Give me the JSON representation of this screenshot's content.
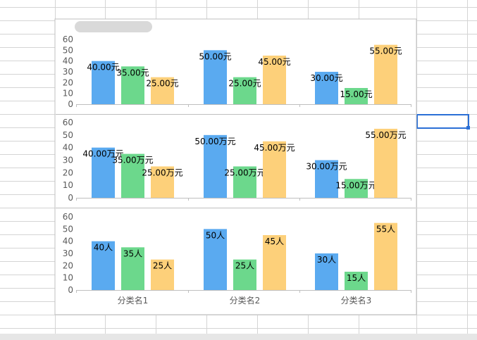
{
  "chart_data": [
    {
      "type": "bar",
      "categories": [
        "分类名1",
        "分类名2",
        "分类名3"
      ],
      "series": [
        {
          "values": [
            40,
            50,
            30
          ],
          "color": "#5aaaf0"
        },
        {
          "values": [
            35,
            25,
            15
          ],
          "color": "#6cd88c"
        },
        {
          "values": [
            25,
            45,
            55
          ],
          "color": "#fdd07a"
        }
      ],
      "data_labels": [
        [
          "40.00元",
          "50.00元",
          "30.00元"
        ],
        [
          "35.00元",
          "25.00元",
          "15.00元"
        ],
        [
          "25.00元",
          "45.00元",
          "55.00元"
        ]
      ],
      "yticks": [
        "0",
        "10",
        "20",
        "30",
        "40",
        "50",
        "60"
      ],
      "ylim": [
        0,
        60
      ],
      "show_category_labels": false
    },
    {
      "type": "bar",
      "categories": [
        "分类名1",
        "分类名2",
        "分类名3"
      ],
      "series": [
        {
          "values": [
            40,
            50,
            30
          ],
          "color": "#5aaaf0"
        },
        {
          "values": [
            35,
            25,
            15
          ],
          "color": "#6cd88c"
        },
        {
          "values": [
            25,
            45,
            55
          ],
          "color": "#fdd07a"
        }
      ],
      "data_labels": [
        [
          "40.00万元",
          "50.00万元",
          "30.00万元"
        ],
        [
          "35.00万元",
          "25.00万元",
          "15.00万元"
        ],
        [
          "25.00万元",
          "45.00万元",
          "55.00万元"
        ]
      ],
      "yticks": [
        "0",
        "10",
        "20",
        "30",
        "40",
        "50",
        "60"
      ],
      "ylim": [
        0,
        60
      ],
      "show_category_labels": false
    },
    {
      "type": "bar",
      "categories": [
        "分类名1",
        "分类名2",
        "分类名3"
      ],
      "series": [
        {
          "values": [
            40,
            50,
            30
          ],
          "color": "#5aaaf0"
        },
        {
          "values": [
            35,
            25,
            15
          ],
          "color": "#6cd88c"
        },
        {
          "values": [
            25,
            45,
            55
          ],
          "color": "#fdd07a"
        }
      ],
      "data_labels": [
        [
          "40人",
          "50人",
          "30人"
        ],
        [
          "35人",
          "25人",
          "15人"
        ],
        [
          "25人",
          "45人",
          "55人"
        ]
      ],
      "yticks": [
        "0",
        "10",
        "20",
        "30",
        "40",
        "50",
        "60"
      ],
      "ylim": [
        0,
        60
      ],
      "show_category_labels": true
    }
  ],
  "sheet": {
    "grid_color": "#d4d4d4",
    "selection_color": "#2a6fd6",
    "chart_border_color": "#bfbfbf",
    "axis_color": "#bfbfbf",
    "scrollbar_color": "#e6e6e6"
  }
}
